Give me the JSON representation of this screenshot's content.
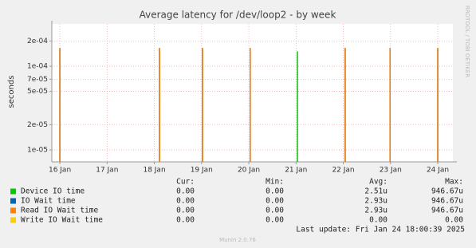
{
  "chart_data": {
    "type": "impulse",
    "title": "Average latency for /dev/loop2 - by week",
    "y_label": "seconds",
    "side_text": "RRDTOOL / TOBI OETIKER",
    "log_scale": true,
    "grid": true,
    "ylim": [
      7.2e-06,
      0.00032
    ],
    "yticks": [
      {
        "value": 1e-05,
        "label": "1e-05"
      },
      {
        "value": 2e-05,
        "label": "2e-05"
      },
      {
        "value": 5e-05,
        "label": "5e-05"
      },
      {
        "value": 7e-05,
        "label": "7e-05"
      },
      {
        "value": 0.0001,
        "label": "1e-04"
      },
      {
        "value": 0.0002,
        "label": "2e-04"
      }
    ],
    "xlim": [
      15.83,
      24.32
    ],
    "xticks": [
      {
        "value": 16,
        "label": "16 Jan"
      },
      {
        "value": 17,
        "label": "17 Jan"
      },
      {
        "value": 18,
        "label": "18 Jan"
      },
      {
        "value": 19,
        "label": "19 Jan"
      },
      {
        "value": 20,
        "label": "20 Jan"
      },
      {
        "value": 21,
        "label": "21 Jan"
      },
      {
        "value": 22,
        "label": "22 Jan"
      },
      {
        "value": 23,
        "label": "23 Jan"
      },
      {
        "value": 24,
        "label": "24 Jan"
      }
    ],
    "x": [
      16.0,
      18.11,
      19.02,
      20.03,
      21.03,
      22.04,
      22.99,
      24.0
    ],
    "legend_columns": [
      "Cur:",
      "Min:",
      "Avg:",
      "Max:"
    ],
    "series": [
      {
        "name": "Device IO time",
        "color": "#00cc00",
        "values": [
          null,
          null,
          null,
          null,
          0.00015,
          null,
          null,
          null
        ],
        "stats": [
          "0.00",
          "0.00",
          "2.51u",
          "946.67u"
        ]
      },
      {
        "name": "IO Wait time",
        "color": "#0066b3",
        "values": [
          0.000165,
          0.000165,
          0.000165,
          0.000165,
          null,
          0.000165,
          0.000165,
          0.000165
        ],
        "stats": [
          "0.00",
          "0.00",
          "2.93u",
          "946.67u"
        ]
      },
      {
        "name": "Read IO Wait time",
        "color": "#ff8000",
        "values": [
          0.000165,
          0.000165,
          0.000165,
          0.000165,
          null,
          0.000165,
          0.000165,
          0.000165
        ],
        "stats": [
          "0.00",
          "0.00",
          "2.93u",
          "946.67u"
        ]
      },
      {
        "name": "Write IO Wait time",
        "color": "#ffcc00",
        "values": [
          null,
          null,
          null,
          null,
          null,
          null,
          null,
          null
        ],
        "stats": [
          "0.00",
          "0.00",
          "0.00",
          "0.00"
        ]
      }
    ],
    "last_update": "Last update: Fri Jan 24 18:00:39 2025",
    "footer": "Munin 2.0.76"
  }
}
